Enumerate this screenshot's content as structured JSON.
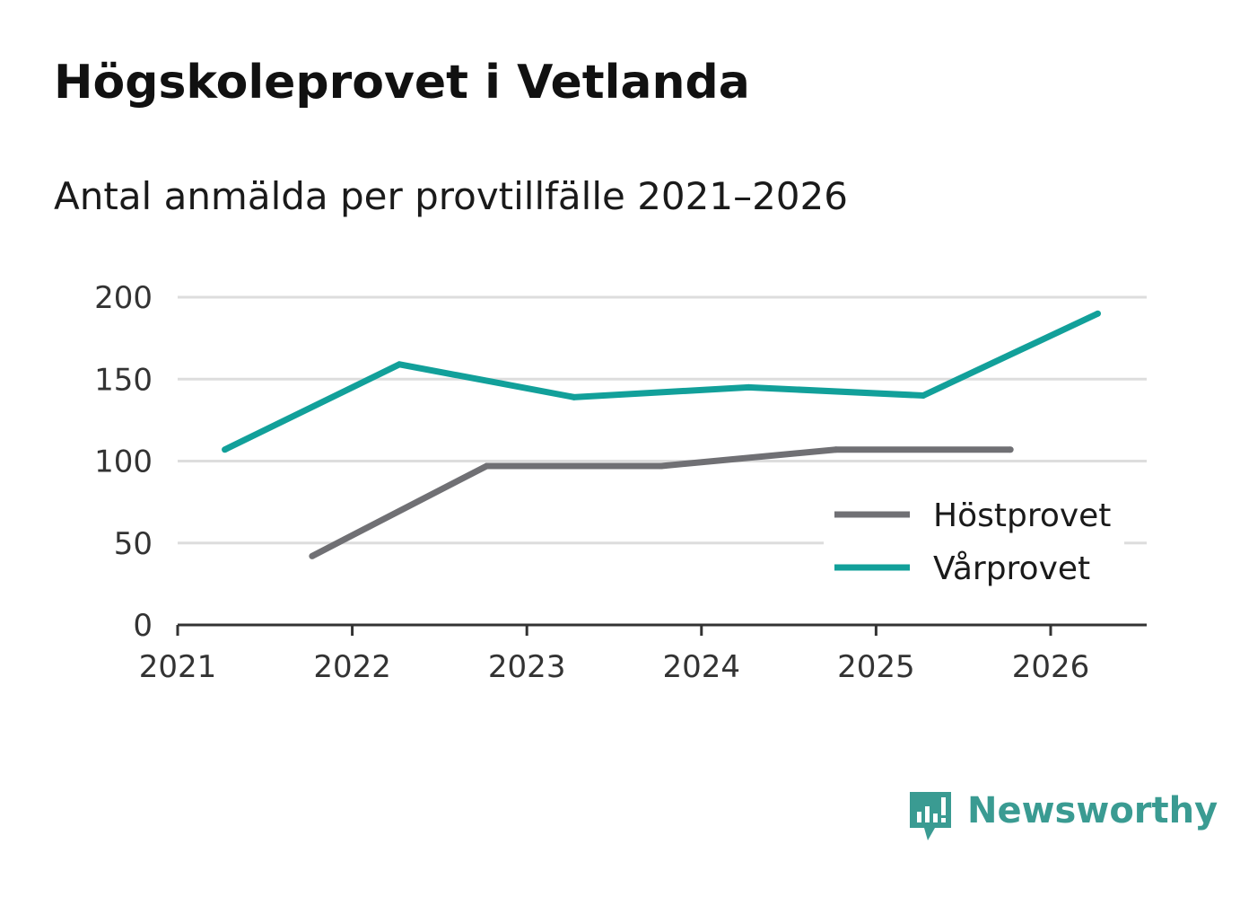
{
  "title": "Högskoleprovet i Vetlanda",
  "subtitle": "Antal anmälda per provtillfälle 2021–2026",
  "brand": {
    "name": "Newsworthy"
  },
  "colors": {
    "host": "#707074",
    "var": "#12a09a",
    "grid": "#dddddd",
    "axis": "#333333",
    "brand": "#3a9b92"
  },
  "chart_data": {
    "type": "line",
    "title": "Högskoleprovet i Vetlanda",
    "subtitle": "Antal anmälda per provtillfälle 2021–2026",
    "xlabel": "",
    "ylabel": "",
    "xlim": [
      2021,
      2026.55
    ],
    "ylim": [
      0,
      200
    ],
    "x_ticks": [
      "2021",
      "2022",
      "2023",
      "2024",
      "2025",
      "2026"
    ],
    "y_ticks": [
      "0",
      "50",
      "100",
      "150",
      "200"
    ],
    "legend_position": "bottom-right",
    "series": [
      {
        "name": "Höstprovet",
        "color": "#707074",
        "x": [
          2021.77,
          2022.77,
          2023.77,
          2024.77,
          2025.77
        ],
        "values": [
          42,
          97,
          97,
          107,
          107
        ]
      },
      {
        "name": "Vårprovet",
        "color": "#12a09a",
        "x": [
          2021.27,
          2022.27,
          2023.27,
          2024.27,
          2025.27,
          2026.27
        ],
        "values": [
          107,
          159,
          139,
          145,
          140,
          190
        ]
      }
    ]
  }
}
